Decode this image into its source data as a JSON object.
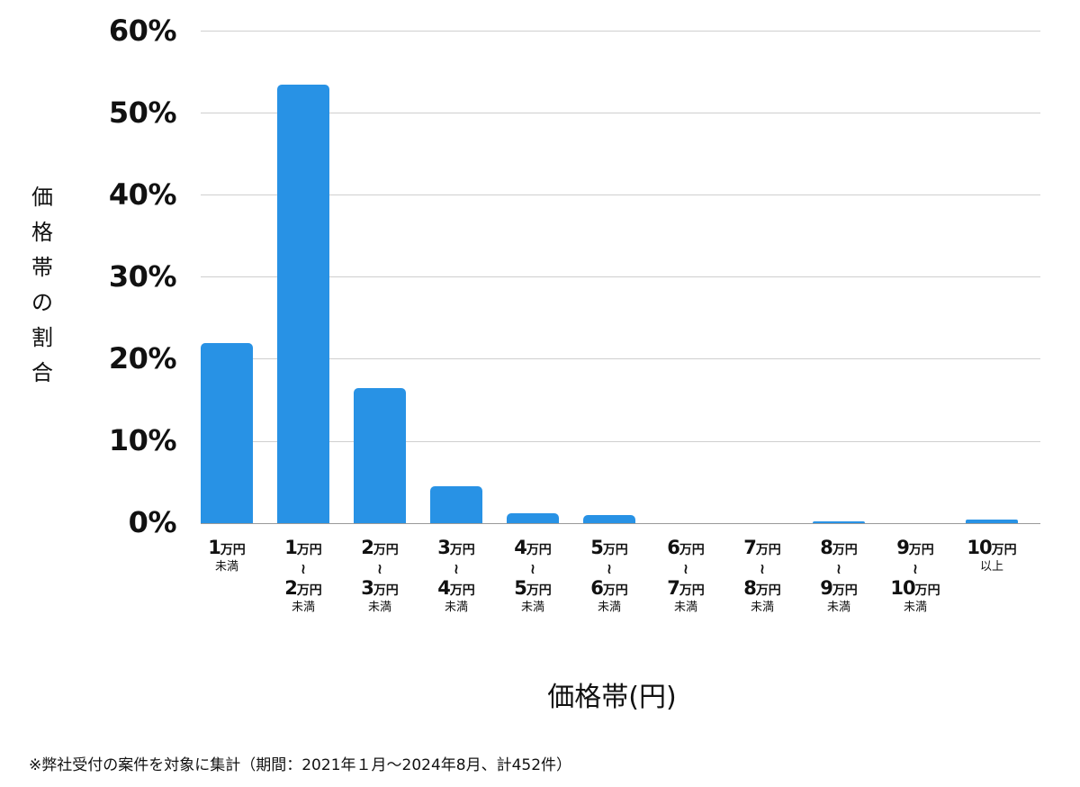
{
  "chart_data": {
    "type": "bar",
    "title": "",
    "xlabel": "価格帯(円)",
    "ylabel": "価格帯の割合",
    "ylim": [
      0,
      60
    ],
    "yticks": [
      "0%",
      "10%",
      "20%",
      "30%",
      "40%",
      "50%",
      "60%"
    ],
    "grid": true,
    "legend": null,
    "bar_color": "#2892e5",
    "categories": [
      "1万円未満",
      "1万円〜2万円未満",
      "2万円〜3万円未満",
      "3万円〜4万円未満",
      "4万円〜5万円未満",
      "5万円〜6万円未満",
      "6万円〜7万円未満",
      "7万円〜8万円未満",
      "8万円〜9万円未満",
      "9万円〜10万円未満",
      "10万円以上"
    ],
    "values": [
      21.9,
      53.4,
      16.5,
      4.5,
      1.2,
      1.0,
      0.0,
      0.0,
      0.2,
      0.0,
      0.4
    ],
    "unit": "%"
  },
  "labels": {
    "yticks": [
      "60%",
      "50%",
      "40%",
      "30%",
      "20%",
      "10%",
      "0%"
    ],
    "ylabel_chars": [
      "価",
      "格",
      "帯",
      "の",
      "割",
      "合"
    ],
    "xlabel": "価格帯(円)",
    "man_yen": "万円",
    "tilde": "〜",
    "miman": "未満",
    "ijou": "以上",
    "categories": [
      {
        "from": "1",
        "to": null,
        "suffix": "未満"
      },
      {
        "from": "1",
        "to": "2",
        "suffix": "未満"
      },
      {
        "from": "2",
        "to": "3",
        "suffix": "未満"
      },
      {
        "from": "3",
        "to": "4",
        "suffix": "未満"
      },
      {
        "from": "4",
        "to": "5",
        "suffix": "未満"
      },
      {
        "from": "5",
        "to": "6",
        "suffix": "未満"
      },
      {
        "from": "6",
        "to": "7",
        "suffix": "未満"
      },
      {
        "from": "7",
        "to": "8",
        "suffix": "未満"
      },
      {
        "from": "8",
        "to": "9",
        "suffix": "未満"
      },
      {
        "from": "9",
        "to": "10",
        "suffix": "未満"
      },
      {
        "from": "10",
        "to": null,
        "suffix": "以上"
      }
    ]
  },
  "footnote": "※弊社受付の案件を対象に集計（期間：2021年１月〜2024年8月、計452件）"
}
